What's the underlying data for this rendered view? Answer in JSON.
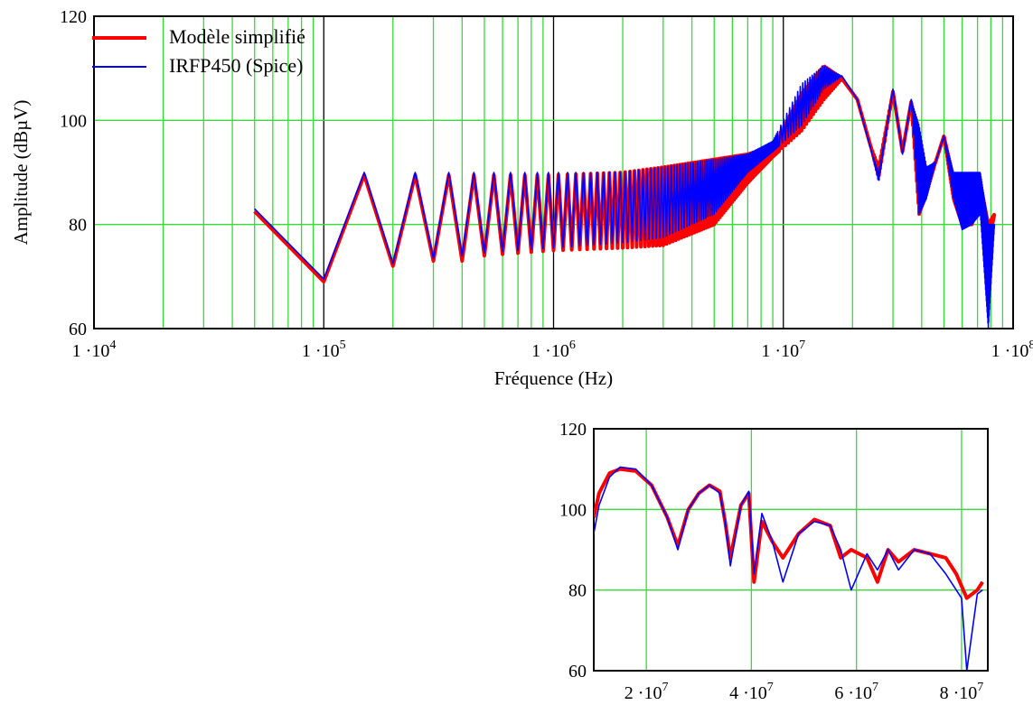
{
  "colors": {
    "grid_minor": "#33dd33",
    "grid_major": "#000000",
    "series_model": "#ff0000",
    "series_spice": "#0000ff",
    "frame": "#000000"
  },
  "legend": {
    "items": [
      {
        "label": "Modèle simplifié",
        "color": "#ff0000",
        "width": 4
      },
      {
        "label": "IRFP450 (Spice)",
        "color": "#0000ff",
        "width": 2
      }
    ]
  },
  "chart_data": [
    {
      "type": "line",
      "xscale": "log",
      "xlabel": "Fréquence (Hz)",
      "ylabel": "Amplitude (dBµV)",
      "xlim": [
        10000,
        100000000
      ],
      "ylim": [
        60,
        120
      ],
      "yticks": [
        60,
        80,
        100,
        120
      ],
      "ytick_labels": [
        "60",
        "80",
        "100",
        "120"
      ],
      "xticks": [
        10000,
        100000,
        1000000,
        10000000,
        100000000
      ],
      "xtick_labels": [
        {
          "base": "1 ·10",
          "exp": "4"
        },
        {
          "base": "1 ·10",
          "exp": "5"
        },
        {
          "base": "1 ·10",
          "exp": "6"
        },
        {
          "base": "1 ·10",
          "exp": "7"
        },
        {
          "base": "1 ·10",
          "exp": "8"
        }
      ],
      "grid": true,
      "series": [
        {
          "name": "Modèle simplifié",
          "color": "#ff0000",
          "x": [
            50000,
            100000,
            150000,
            200000,
            250000,
            300000,
            350000,
            400000,
            450000,
            500000,
            700000,
            1000000,
            2000000,
            3000000,
            5000000,
            7000000,
            9000000,
            12000000,
            15000000,
            18000000,
            21000000,
            24000000,
            26000000,
            30000000,
            33000000,
            36000000,
            39000000,
            42000000,
            46000000,
            50000000,
            55000000,
            60000000,
            66000000,
            72000000,
            78000000,
            83000000
          ],
          "y_peak": [
            82.5,
            69,
            89.5,
            89.5,
            89.5,
            89.5,
            89.5,
            89.5,
            89.5,
            89.5,
            89.5,
            89.5,
            90,
            91,
            92.5,
            93.5,
            95,
            105,
            110.5,
            108,
            104,
            95,
            91,
            105.5,
            94,
            103.5,
            96,
            90,
            92,
            97,
            89,
            89,
            88,
            88,
            80,
            82
          ],
          "y_trough": [
            82.5,
            69,
            72,
            72,
            72.5,
            73,
            73,
            73,
            73.5,
            74,
            74.5,
            75,
            75.5,
            76,
            80,
            88,
            93,
            98,
            104,
            108,
            104,
            95,
            89,
            105.5,
            94,
            103.5,
            82,
            86,
            92,
            97,
            85,
            80,
            80,
            84,
            76,
            82
          ]
        },
        {
          "name": "IRFP450 (Spice)",
          "color": "#0000ff",
          "x": [
            50000,
            100000,
            150000,
            200000,
            250000,
            300000,
            350000,
            400000,
            450000,
            500000,
            700000,
            1000000,
            2000000,
            3000000,
            5000000,
            7000000,
            9000000,
            12000000,
            15000000,
            18000000,
            21000000,
            24000000,
            26000000,
            30000000,
            33000000,
            36000000,
            39000000,
            42000000,
            46000000,
            50000000,
            55000000,
            60000000,
            66000000,
            72000000,
            78000000,
            83000000
          ],
          "y_peak": [
            83,
            69.5,
            90,
            90,
            90,
            90,
            90,
            90,
            90,
            90,
            90,
            90,
            90,
            91,
            92.5,
            93.5,
            96,
            107,
            110.5,
            108.5,
            104,
            94.5,
            90,
            106,
            93.5,
            104,
            99,
            91,
            92,
            97,
            90,
            90,
            90,
            90,
            80,
            80
          ],
          "y_trough": [
            83,
            69.5,
            72.5,
            72.5,
            73,
            73.5,
            73.5,
            74,
            74,
            74.5,
            75,
            75.5,
            76.5,
            77.5,
            82,
            90,
            94,
            99,
            106,
            108.5,
            104,
            94.5,
            88,
            106,
            93.5,
            104,
            82,
            85,
            92,
            97,
            85,
            79,
            80,
            82,
            60,
            80
          ]
        }
      ]
    },
    {
      "type": "line",
      "xscale": "linear",
      "xlabel": "",
      "ylabel": "",
      "xlim": [
        10000000,
        85000000
      ],
      "ylim": [
        60,
        120
      ],
      "yticks": [
        60,
        80,
        100,
        120
      ],
      "ytick_labels": [
        "60",
        "80",
        "100",
        "120"
      ],
      "xticks": [
        20000000,
        40000000,
        60000000,
        80000000
      ],
      "xtick_labels": [
        {
          "base": "2 ·10",
          "exp": "7"
        },
        {
          "base": "4 ·10",
          "exp": "7"
        },
        {
          "base": "6 ·10",
          "exp": "7"
        },
        {
          "base": "8 ·10",
          "exp": "7"
        }
      ],
      "grid": true,
      "series": [
        {
          "name": "Modèle simplifié",
          "color": "#ff0000",
          "x": [
            10000000,
            11000000,
            13000000,
            15000000,
            18000000,
            21000000,
            24000000,
            26000000,
            28000000,
            30000000,
            32000000,
            34000000,
            35000000,
            36000000,
            38000000,
            39500000,
            40500000,
            42000000,
            44000000,
            46000000,
            49000000,
            52000000,
            55000000,
            57000000,
            59000000,
            62000000,
            64000000,
            66000000,
            68000000,
            71000000,
            74000000,
            77000000,
            79000000,
            81000000,
            83000000,
            84000000
          ],
          "y": [
            98,
            104,
            109,
            110,
            109.5,
            106,
            98,
            91,
            100,
            104,
            106,
            104.5,
            97,
            88,
            101,
            104,
            82,
            97,
            92,
            88,
            94,
            97.5,
            96,
            88,
            90,
            88,
            82,
            90,
            87,
            90,
            89,
            88,
            84,
            78,
            80,
            82
          ]
        },
        {
          "name": "IRFP450 (Spice)",
          "color": "#0000ff",
          "x": [
            10000000,
            11000000,
            13000000,
            15000000,
            18000000,
            21000000,
            24000000,
            26000000,
            28000000,
            30000000,
            32000000,
            34000000,
            35000000,
            36000000,
            38000000,
            39500000,
            40500000,
            42000000,
            44000000,
            46000000,
            49000000,
            52000000,
            55000000,
            57000000,
            59000000,
            62000000,
            64000000,
            66000000,
            68000000,
            71000000,
            74000000,
            77000000,
            79000000,
            80000000,
            81000000,
            83000000,
            84000000
          ],
          "y": [
            94,
            101,
            108,
            110.5,
            110,
            106,
            98,
            90,
            100,
            104,
            106,
            104,
            97,
            86,
            101,
            104.5,
            84,
            99,
            92,
            82,
            94,
            97,
            96,
            90,
            80,
            89,
            85,
            90,
            85,
            90,
            89,
            84,
            80,
            78,
            60,
            79,
            80
          ]
        }
      ]
    }
  ]
}
